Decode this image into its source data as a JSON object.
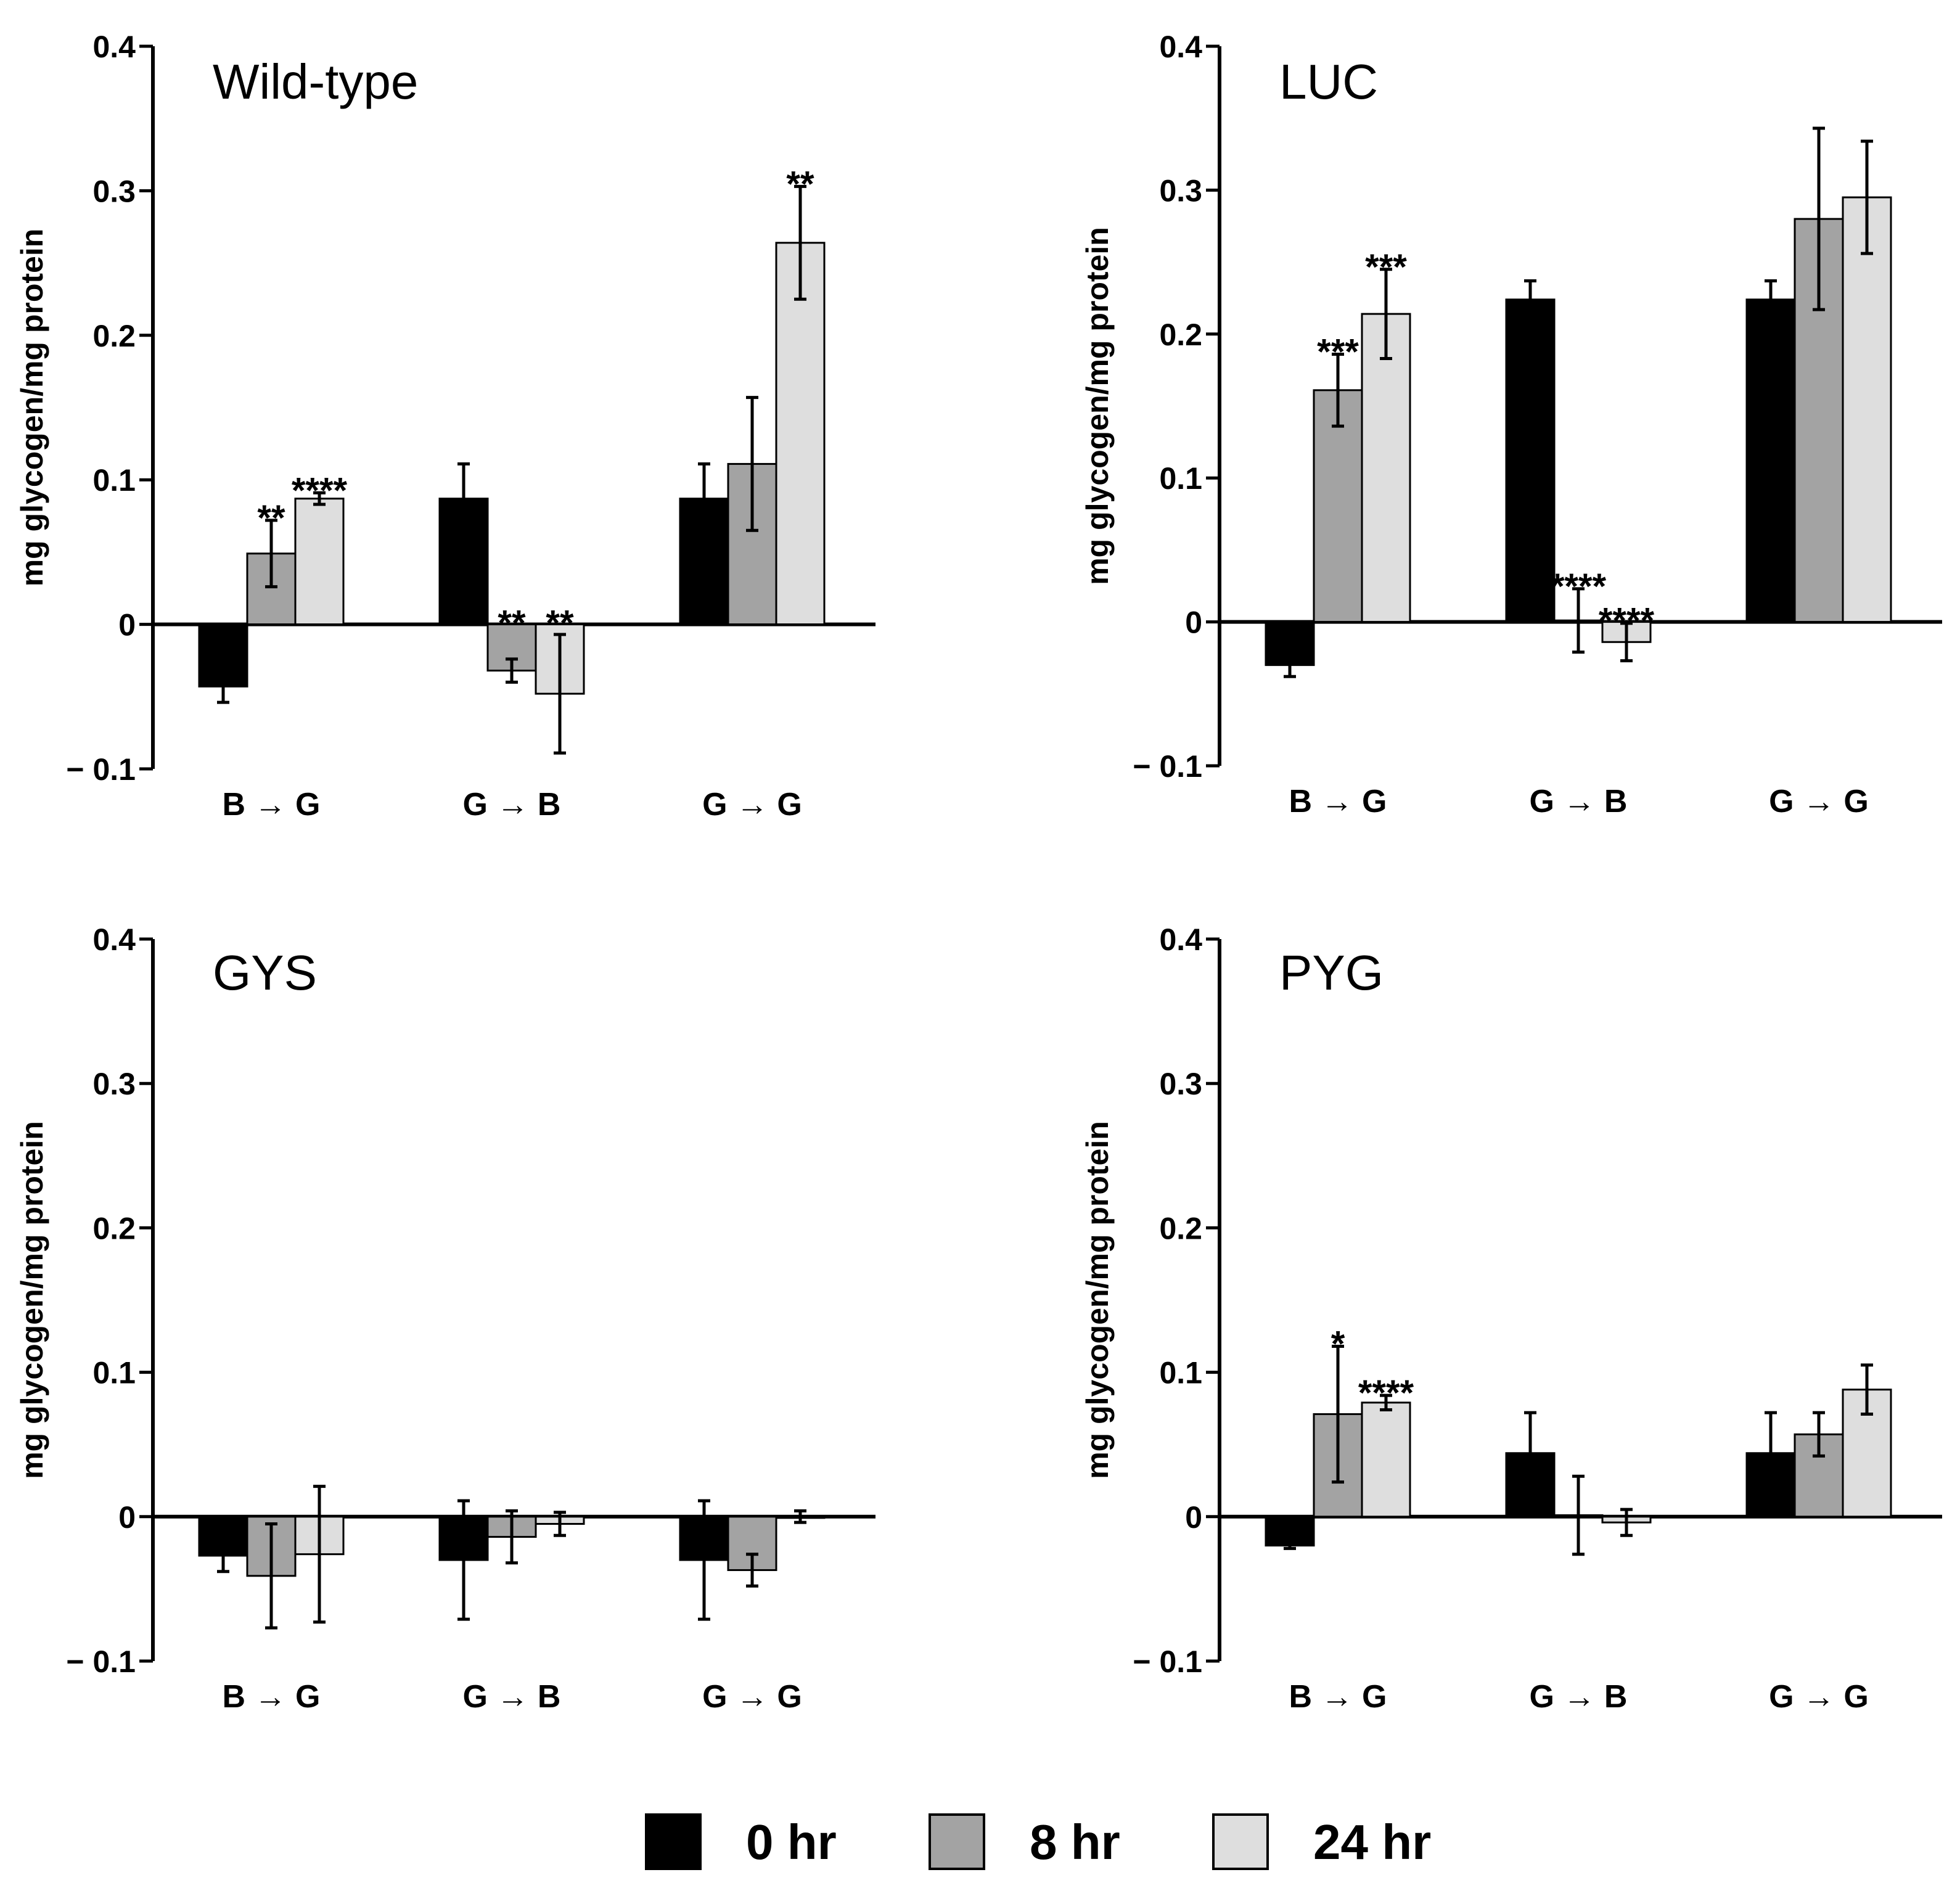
{
  "legend": [
    {
      "label": "0 hr",
      "color": "#000000"
    },
    {
      "label": "8 hr",
      "color": "#a3a3a3"
    },
    {
      "label": "24 hr",
      "color": "#dedede"
    }
  ],
  "chart_data": [
    {
      "type": "bar",
      "title": "Wild-type",
      "ylabel": "mg glycogen/mg protein",
      "ylim": [
        -0.1,
        0.4
      ],
      "yticks": [
        "0.4",
        "0.3",
        "0.2",
        "0.1",
        "0",
        "− 0.1"
      ],
      "categories": [
        "B → G",
        "G → B",
        "G → G"
      ],
      "series": [
        {
          "name": "0 hr",
          "values": [
            -0.043,
            0.087,
            0.087
          ],
          "errors": [
            0.011,
            0.024,
            0.024
          ],
          "sig": [
            "",
            "",
            ""
          ]
        },
        {
          "name": "8 hr",
          "values": [
            0.049,
            -0.032,
            0.111
          ],
          "errors": [
            0.023,
            0.008,
            0.046
          ],
          "sig": [
            "**",
            "**",
            ""
          ]
        },
        {
          "name": "24 hr",
          "values": [
            0.087,
            -0.048,
            0.264
          ],
          "errors": [
            0.004,
            0.041,
            0.039
          ],
          "sig": [
            "****",
            "**",
            "**"
          ]
        }
      ]
    },
    {
      "type": "bar",
      "title": "LUC",
      "ylabel": "mg glycogen/mg protein",
      "ylim": [
        -0.1,
        0.4
      ],
      "yticks": [
        "0.4",
        "0.3",
        "0.2",
        "0.1",
        "0",
        "− 0.1"
      ],
      "categories": [
        "B → G",
        "G → B",
        "G → G"
      ],
      "series": [
        {
          "name": "0 hr",
          "values": [
            -0.03,
            0.224,
            0.224
          ],
          "errors": [
            0.008,
            0.013,
            0.013
          ],
          "sig": [
            "",
            "",
            ""
          ]
        },
        {
          "name": "8 hr",
          "values": [
            0.161,
            0.001,
            0.28
          ],
          "errors": [
            0.025,
            0.022,
            0.063
          ],
          "sig": [
            "***",
            "****",
            ""
          ]
        },
        {
          "name": "24 hr",
          "values": [
            0.214,
            -0.014,
            0.295
          ],
          "errors": [
            0.031,
            0.013,
            0.039
          ],
          "sig": [
            "***",
            "****",
            ""
          ]
        }
      ]
    },
    {
      "type": "bar",
      "title": "GYS",
      "ylabel": "mg glycogen/mg protein",
      "ylim": [
        -0.1,
        0.4
      ],
      "yticks": [
        "0.4",
        "0.3",
        "0.2",
        "0.1",
        "0",
        "− 0.1"
      ],
      "categories": [
        "B → G",
        "G → B",
        "G → G"
      ],
      "series": [
        {
          "name": "0 hr",
          "values": [
            -0.027,
            -0.03,
            -0.03
          ],
          "errors": [
            0.011,
            0.041,
            0.041
          ],
          "sig": [
            "",
            "",
            ""
          ]
        },
        {
          "name": "8 hr",
          "values": [
            -0.041,
            -0.014,
            -0.037
          ],
          "errors": [
            0.036,
            0.018,
            0.011
          ],
          "sig": [
            "",
            "",
            ""
          ]
        },
        {
          "name": "24 hr",
          "values": [
            -0.026,
            -0.005,
            0.0
          ],
          "errors": [
            0.047,
            0.008,
            0.004
          ],
          "sig": [
            "",
            "",
            ""
          ]
        }
      ]
    },
    {
      "type": "bar",
      "title": "PYG",
      "ylabel": "mg glycogen/mg protein",
      "ylim": [
        -0.1,
        0.4
      ],
      "yticks": [
        "0.4",
        "0.3",
        "0.2",
        "0.1",
        "0",
        "− 0.1"
      ],
      "categories": [
        "B → G",
        "G → B",
        "G → G"
      ],
      "series": [
        {
          "name": "0 hr",
          "values": [
            -0.02,
            0.044,
            0.044
          ],
          "errors": [
            0.002,
            0.028,
            0.028
          ],
          "sig": [
            "",
            "",
            ""
          ]
        },
        {
          "name": "8 hr",
          "values": [
            0.071,
            0.001,
            0.057
          ],
          "errors": [
            0.047,
            0.027,
            0.015
          ],
          "sig": [
            "*",
            "",
            ""
          ]
        },
        {
          "name": "24 hr",
          "values": [
            0.079,
            -0.004,
            0.088
          ],
          "errors": [
            0.005,
            0.009,
            0.017
          ],
          "sig": [
            "****",
            "",
            ""
          ]
        }
      ]
    }
  ]
}
